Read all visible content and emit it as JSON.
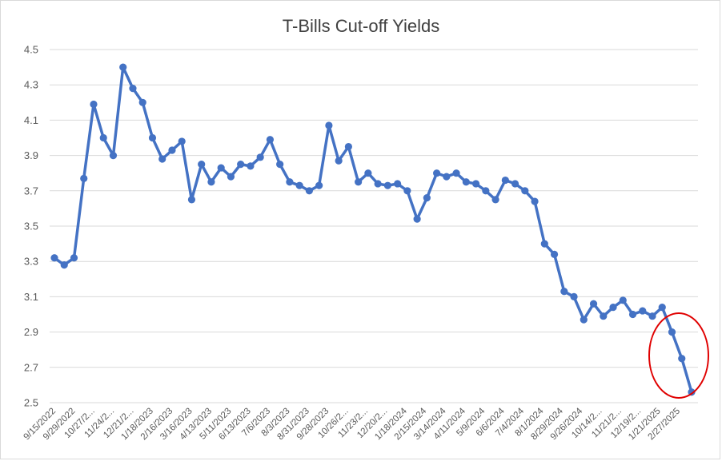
{
  "chart_data": {
    "type": "line",
    "title": "T-Bills Cut-off Yields",
    "xlabel": "",
    "ylabel": "",
    "ylim": [
      2.5,
      4.5
    ],
    "yticks": [
      2.5,
      2.7,
      2.9,
      3.1,
      3.3,
      3.5,
      3.7,
      3.9,
      4.1,
      4.3,
      4.5
    ],
    "ytick_labels": [
      "2.5",
      "2.7",
      "2.9",
      "3.1",
      "3.3",
      "3.5",
      "3.7",
      "3.9",
      "4.1",
      "4.3",
      "4.5"
    ],
    "grid": "horizontal",
    "series_color": "#4472c4",
    "annotation_color": "#e00000",
    "xtick_labels": [
      "9/15/2022",
      "9/29/2022",
      "10/27/2...",
      "11/24/2...",
      "12/21/2...",
      "1/18/2023",
      "2/16/2023",
      "3/16/2023",
      "4/13/2023",
      "5/11/2023",
      "6/13/2023",
      "7/6/2023",
      "8/3/2023",
      "8/31/2023",
      "9/28/2023",
      "10/26/2...",
      "11/23/2...",
      "12/20/2...",
      "1/18/2024",
      "2/15/2024",
      "3/14/2024",
      "4/11/2024",
      "5/9/2024",
      "6/6/2024",
      "7/4/2024",
      "8/1/2024",
      "8/29/2024",
      "9/26/2024",
      "10/14/2...",
      "11/21/2...",
      "12/19/2...",
      "1/21/2025",
      "2/27/2025"
    ],
    "values": [
      3.32,
      3.28,
      3.32,
      3.77,
      4.19,
      4.0,
      3.9,
      4.4,
      4.28,
      4.2,
      4.0,
      3.88,
      3.93,
      3.98,
      3.65,
      3.85,
      3.75,
      3.83,
      3.78,
      3.85,
      3.84,
      3.89,
      3.99,
      3.85,
      3.75,
      3.73,
      3.7,
      3.73,
      4.07,
      3.87,
      3.95,
      3.75,
      3.8,
      3.74,
      3.73,
      3.74,
      3.7,
      3.54,
      3.66,
      3.8,
      3.78,
      3.8,
      3.75,
      3.74,
      3.7,
      3.65,
      3.76,
      3.74,
      3.7,
      3.64,
      3.4,
      3.34,
      3.13,
      3.1,
      2.97,
      3.06,
      2.99,
      3.04,
      3.08,
      3.0,
      3.02,
      2.99,
      3.04,
      2.9,
      2.75,
      2.56
    ]
  }
}
